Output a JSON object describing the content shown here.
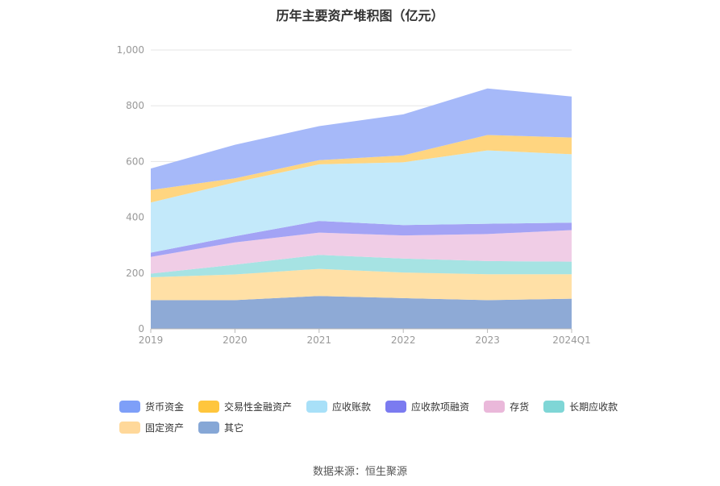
{
  "chart_data": {
    "type": "area",
    "stacked": true,
    "title": "历年主要资产堆积图（亿元）",
    "source": "数据来源：恒生聚源",
    "x": [
      "2019",
      "2020",
      "2021",
      "2022",
      "2023",
      "2024Q1"
    ],
    "y_ticks": [
      "0",
      "200",
      "400",
      "600",
      "800",
      "1,000"
    ],
    "ylim": [
      0,
      1000
    ],
    "legend_position": "bottom",
    "series": [
      {
        "name": "其它",
        "color": "#8eaad6",
        "values": [
          103,
          103,
          118,
          110,
          103,
          108
        ]
      },
      {
        "name": "固定资产",
        "color": "#ffe0a6",
        "values": [
          82,
          92,
          97,
          92,
          93,
          88
        ]
      },
      {
        "name": "长期应收款",
        "color": "#a6e3e3",
        "values": [
          13,
          35,
          50,
          50,
          47,
          45
        ]
      },
      {
        "name": "存货",
        "color": "#f0cde6",
        "values": [
          60,
          80,
          80,
          83,
          97,
          113
        ]
      },
      {
        "name": "应收款项融资",
        "color": "#a3a3f5",
        "values": [
          15,
          22,
          42,
          37,
          37,
          27
        ]
      },
      {
        "name": "应收账款",
        "color": "#c3e9fa",
        "values": [
          180,
          193,
          203,
          225,
          263,
          245
        ]
      },
      {
        "name": "交易性金融资产",
        "color": "#ffd580",
        "values": [
          45,
          15,
          15,
          25,
          55,
          60
        ]
      },
      {
        "name": "货币资金",
        "color": "#a6b9f9",
        "values": [
          77,
          120,
          122,
          147,
          167,
          147
        ]
      }
    ],
    "legend_order": [
      "货币资金",
      "交易性金融资产",
      "应收账款",
      "应收款项融资",
      "存货",
      "长期应收款",
      "固定资产",
      "其它"
    ],
    "legend_colors": {
      "货币资金": "#7e9ff8",
      "交易性金融资产": "#ffc63d",
      "应收账款": "#a8e0f8",
      "应收款项融资": "#7b7bf0",
      "存货": "#eab8da",
      "长期应收款": "#7fd6d6",
      "固定资产": "#ffd89a",
      "其它": "#86a7d6"
    }
  }
}
